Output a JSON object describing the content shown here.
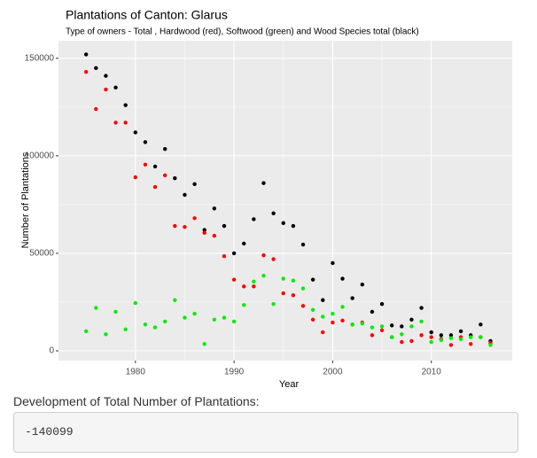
{
  "chart_data": {
    "type": "scatter",
    "title": "Plantations of Canton: Glarus",
    "subtitle": "Type of owners - Total , Hardwood (red), Softwood (green) and Wood Species total (black)",
    "x_label": "Year",
    "y_label": "Number of Plantations",
    "x": [
      1975,
      1976,
      1977,
      1978,
      1979,
      1980,
      1981,
      1982,
      1983,
      1984,
      1985,
      1986,
      1987,
      1988,
      1989,
      1990,
      1991,
      1992,
      1993,
      1994,
      1995,
      1996,
      1997,
      1998,
      1999,
      2000,
      2001,
      2002,
      2003,
      2004,
      2005,
      2006,
      2007,
      2008,
      2009,
      2010,
      2011,
      2012,
      2013,
      2014,
      2015,
      2016
    ],
    "series": [
      {
        "color": "#000000",
        "values": [
          152000,
          145000,
          141000,
          135000,
          126000,
          112000,
          107000,
          94500,
          103500,
          88500,
          80000,
          85500,
          62000,
          73000,
          64000,
          50000,
          55000,
          67500,
          86000,
          70500,
          65500,
          64000,
          54500,
          36500,
          26000,
          45000,
          37000,
          27000,
          34000,
          20000,
          24000,
          13000,
          12500,
          16000,
          22000,
          9500,
          8000,
          8000,
          10000,
          8000,
          13500,
          5000
        ]
      },
      {
        "color": "#ff0000",
        "values": [
          143000,
          124000,
          134000,
          117000,
          117000,
          89000,
          95500,
          84000,
          90000,
          64000,
          63500,
          68000,
          60500,
          59000,
          48500,
          36500,
          33000,
          33000,
          49000,
          47000,
          29500,
          28500,
          23000,
          16000,
          9500,
          14500,
          15500,
          13500,
          14500,
          8000,
          10500,
          7000,
          4500,
          5000,
          8000,
          7000,
          6000,
          3000,
          7000,
          3500,
          7000,
          4000
        ]
      },
      {
        "color": "#00ee00",
        "values": [
          10000,
          22000,
          8500,
          20000,
          11000,
          24500,
          13500,
          12000,
          15000,
          26000,
          17000,
          19000,
          3500,
          16000,
          17000,
          15000,
          23500,
          35500,
          38500,
          24000,
          37000,
          36000,
          32000,
          21000,
          17500,
          19000,
          22500,
          13500,
          14000,
          12000,
          12500,
          7000,
          8500,
          12500,
          15000,
          4500,
          5500,
          6500,
          6000,
          7000,
          7000,
          3000
        ]
      }
    ],
    "xlim": [
      1972.2,
      2018.2
    ],
    "ylim": [
      -5000,
      159000
    ],
    "xticks": [
      1980,
      1990,
      2000,
      2010
    ],
    "yticks": [
      0,
      50000,
      100000,
      150000
    ],
    "grid": true
  },
  "output": {
    "label": "Development of Total Number of Plantations:",
    "value": "-140099"
  }
}
